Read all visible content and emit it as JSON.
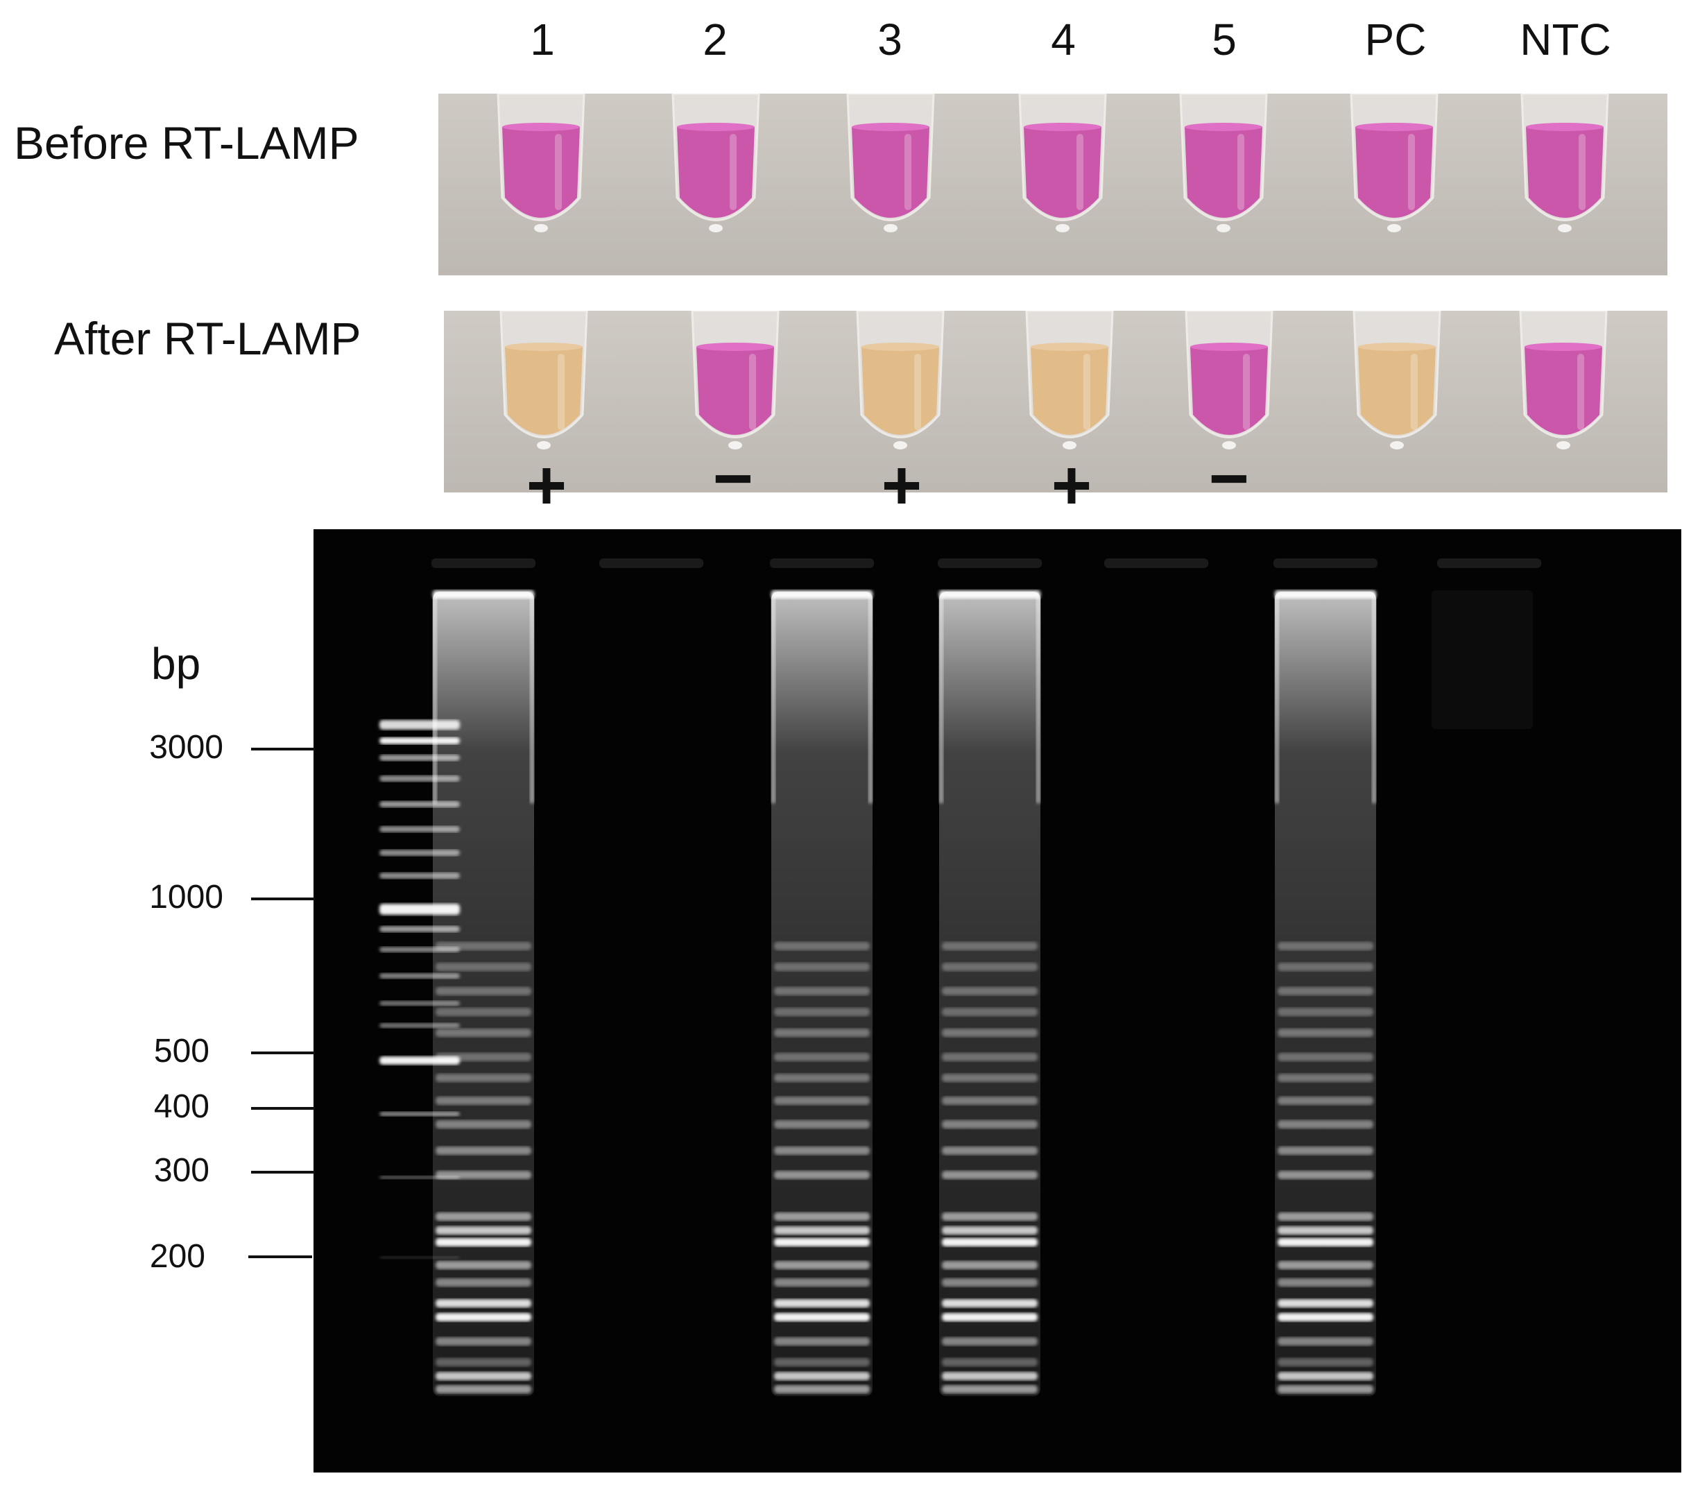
{
  "lanes": [
    "1",
    "2",
    "3",
    "4",
    "5",
    "PC",
    "NTC"
  ],
  "rows": {
    "before": "Before RT-LAMP",
    "after": "After RT-LAMP"
  },
  "results": [
    "+",
    "−",
    "+",
    "+",
    "−",
    "",
    ""
  ],
  "tube_colors": {
    "before": [
      "pink",
      "pink",
      "pink",
      "pink",
      "pink",
      "pink",
      "pink"
    ],
    "after": [
      "yellow",
      "pink",
      "yellow",
      "yellow",
      "pink",
      "yellow",
      "pink"
    ],
    "pink_hex": "#c94fa8",
    "yellow_hex": "#e0b884"
  },
  "gel": {
    "unit": "bp",
    "markers": [
      "3000",
      "1000",
      "500",
      "400",
      "300",
      "200"
    ],
    "lane_product": [
      true,
      false,
      true,
      true,
      false,
      true,
      false
    ]
  }
}
